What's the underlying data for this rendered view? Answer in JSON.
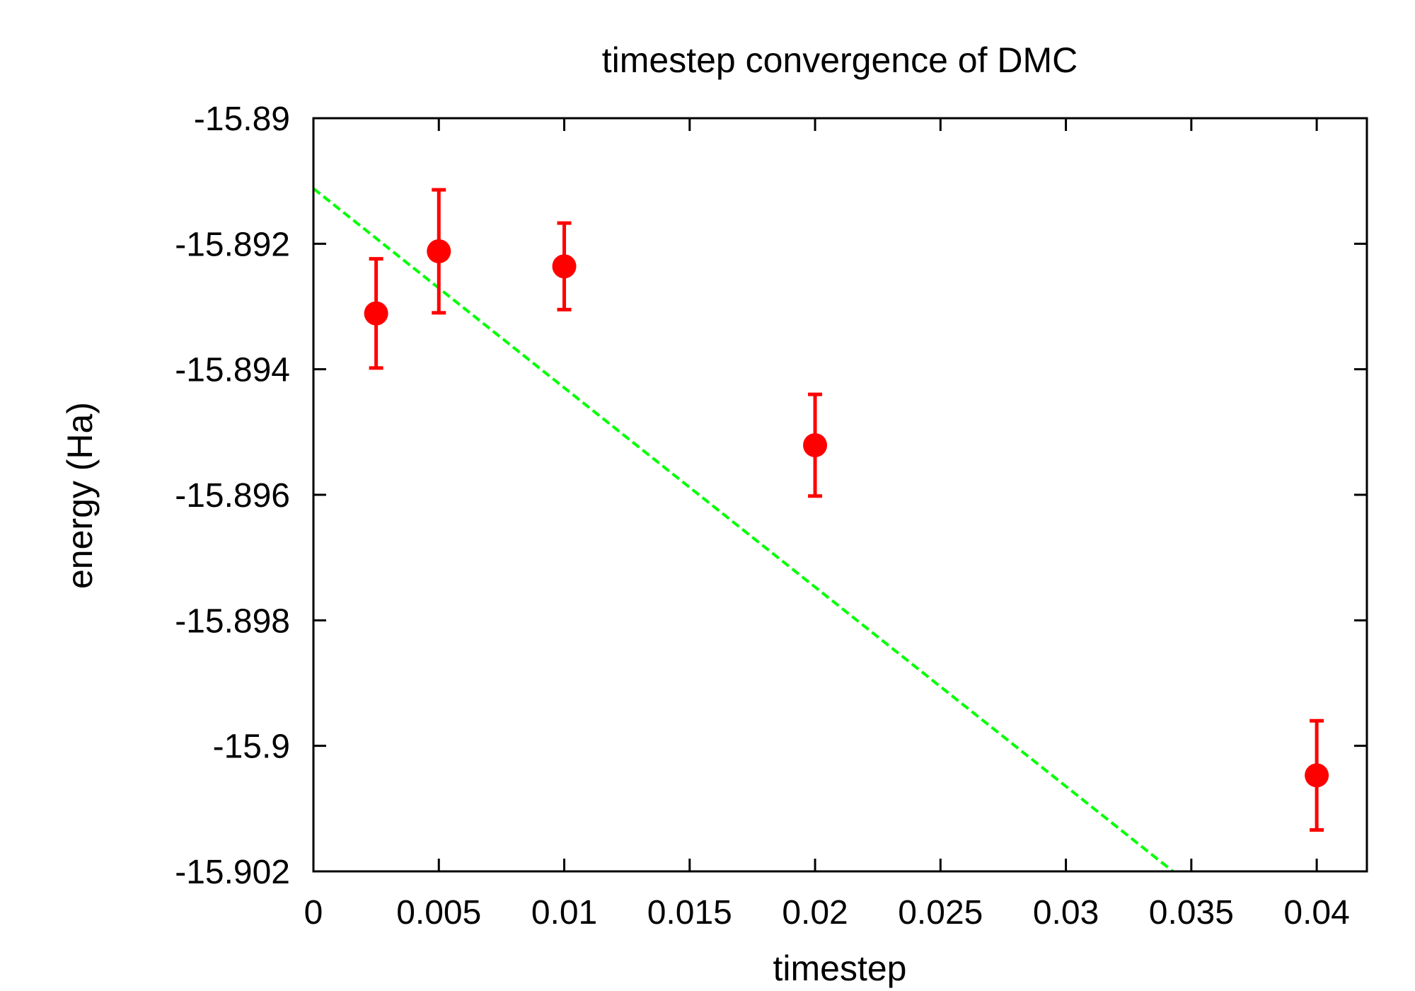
{
  "chart_data": {
    "type": "scatter",
    "title": "timestep convergence of DMC",
    "xlabel": "timestep",
    "ylabel": "energy (Ha)",
    "xlim": [
      0,
      0.042
    ],
    "ylim": [
      -15.902,
      -15.89
    ],
    "xticks": [
      0,
      0.005,
      0.01,
      0.015,
      0.02,
      0.025,
      0.03,
      0.035,
      0.04
    ],
    "xtick_labels": [
      "0",
      "0.005",
      "0.01",
      "0.015",
      "0.02",
      "0.025",
      "0.03",
      "0.035",
      "0.04"
    ],
    "yticks": [
      -15.89,
      -15.892,
      -15.894,
      -15.896,
      -15.898,
      -15.9,
      -15.902
    ],
    "ytick_labels": [
      "-15.89",
      "-15.892",
      "-15.894",
      "-15.896",
      "-15.898",
      "-15.9",
      "-15.902"
    ],
    "grid": false,
    "legend": "none",
    "series": [
      {
        "kind": "points-with-errorbars",
        "color": "#ff0000",
        "points": [
          {
            "x": 0.0025,
            "y": -15.89311,
            "err": 0.00087
          },
          {
            "x": 0.005,
            "y": -15.89212,
            "err": 0.00098
          },
          {
            "x": 0.01,
            "y": -15.89236,
            "err": 0.00069
          },
          {
            "x": 0.02,
            "y": -15.89521,
            "err": 0.00081
          },
          {
            "x": 0.04,
            "y": -15.90047,
            "err": 0.00087
          }
        ]
      },
      {
        "kind": "fit-line",
        "style": "dashed",
        "color": "#00ff00",
        "slope": -0.3175,
        "intercept": -15.89112
      }
    ]
  }
}
